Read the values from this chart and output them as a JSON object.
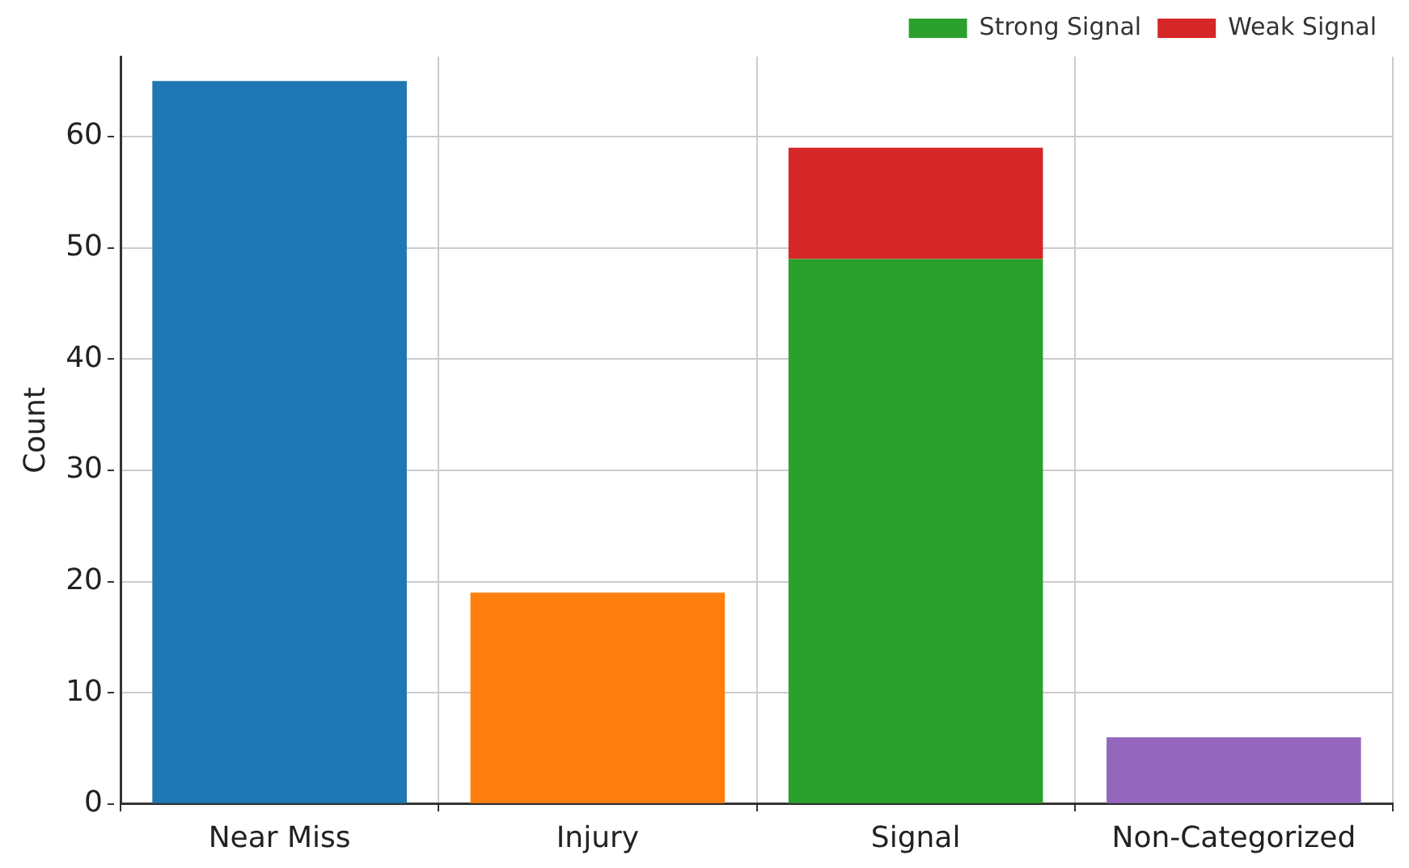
{
  "chart_data": {
    "type": "bar",
    "ylabel": "Count",
    "categories": [
      "Near Miss",
      "Injury",
      "Signal",
      "Non-Categorized"
    ],
    "series": [
      {
        "colors": [
          "#1f77b4",
          "#ff7f0e",
          null,
          "#9467bd"
        ],
        "values": [
          65,
          19,
          null,
          6
        ]
      },
      {
        "name": "Strong Signal",
        "color": "#2ca02c",
        "values": [
          null,
          null,
          49,
          null
        ]
      },
      {
        "name": "Weak Signal",
        "color": "#d62728",
        "values": [
          null,
          null,
          10,
          null
        ]
      }
    ],
    "stacked": true,
    "ylim": [
      0,
      67.2
    ],
    "yticks": [
      0,
      10,
      20,
      30,
      40,
      50,
      60
    ],
    "grid": true,
    "legend": "top right"
  }
}
